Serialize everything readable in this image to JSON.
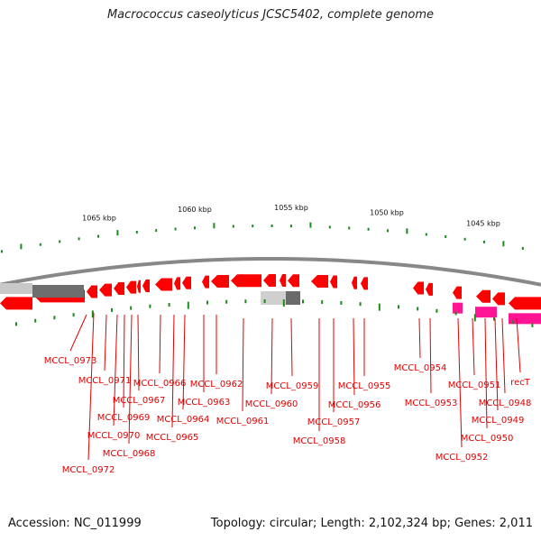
{
  "title": "Macrococcus caseolyticus JCSC5402, complete genome",
  "footer": {
    "accession": "Accession: NC_011999",
    "summary": "Topology: circular; Length: 2,102,324 bp; Genes: 2,011"
  },
  "colors": {
    "gene_forward": "#ff0000",
    "gene_highlight": "#ff1493",
    "ruler_tick": "#1a8c1a",
    "label": "#e00000",
    "backbone": "#888888"
  },
  "ruler": {
    "labels": [
      "1065 kbp",
      "1060 kbp",
      "1055 kbp",
      "1050 kbp",
      "1045 kbp"
    ]
  },
  "gene_labels": [
    "MCCL_0973",
    "MCCL_0972",
    "MCCL_0971",
    "MCCL_0970",
    "MCCL_0969",
    "MCCL_0968",
    "MCCL_0967",
    "MCCL_0966",
    "MCCL_0965",
    "MCCL_0964",
    "MCCL_0963",
    "MCCL_0962",
    "MCCL_0961",
    "MCCL_0960",
    "MCCL_0959",
    "MCCL_0958",
    "MCCL_0957",
    "MCCL_0956",
    "MCCL_0955",
    "MCCL_0954",
    "MCCL_0953",
    "MCCL_0952",
    "MCCL_0951",
    "MCCL_0950",
    "MCCL_0949",
    "MCCL_0948",
    "recT"
  ]
}
